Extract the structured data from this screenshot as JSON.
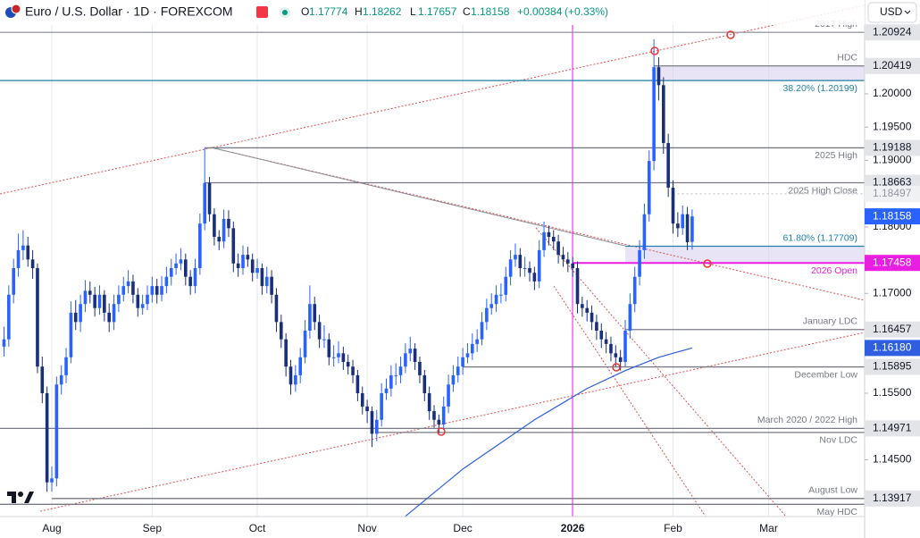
{
  "chart_data": {
    "type": "candlestick",
    "title": "Euro / U.S. Dollar · 1D · FOREXCOM",
    "currency": "USD",
    "ohlc_labels": [
      "O",
      "H",
      "L",
      "C"
    ],
    "change": "+0.00384",
    "change_pct": "(+0.33%)",
    "up_color": "#2962ff",
    "down_color": "#1a2f7a",
    "xlim": [
      -10.84,
      170.09
    ],
    "ylim": [
      1.13646,
      1.2141
    ],
    "xticks": [
      {
        "value": 0,
        "label": "Aug"
      },
      {
        "value": 21,
        "label": "Sep"
      },
      {
        "value": 43,
        "label": "Oct"
      },
      {
        "value": 66,
        "label": "Nov"
      },
      {
        "value": 86,
        "label": "Dec"
      },
      {
        "value": 109,
        "label": "2026"
      },
      {
        "value": 130,
        "label": "Feb"
      },
      {
        "value": 150,
        "label": "Mar"
      }
    ],
    "yticks": [
      {
        "value": 1.2,
        "label": "1.20000"
      },
      {
        "value": 1.195,
        "label": "1.19500"
      },
      {
        "value": 1.19,
        "label": "1.19000"
      },
      {
        "value": 1.18,
        "label": "1.18000"
      },
      {
        "value": 1.17,
        "label": "1.17000"
      },
      {
        "value": 1.155,
        "label": "1.15500"
      },
      {
        "value": 1.145,
        "label": "1.14500"
      }
    ],
    "x": [
      -10,
      -9,
      -8,
      -7,
      -6,
      -5,
      -4,
      -3,
      -2,
      -1,
      0,
      1,
      2,
      3,
      4,
      5,
      6,
      7,
      8,
      9,
      10,
      11,
      12,
      13,
      14,
      15,
      16,
      17,
      18,
      19,
      20,
      21,
      22,
      23,
      24,
      25,
      26,
      27,
      28,
      29,
      30,
      31,
      32,
      33,
      34,
      35,
      36,
      37,
      38,
      39,
      40,
      41,
      42,
      43,
      44,
      45,
      46,
      47,
      48,
      49,
      50,
      51,
      52,
      53,
      54,
      55,
      56,
      57,
      58,
      59,
      60,
      61,
      62,
      63,
      64,
      65,
      66,
      67,
      68,
      69,
      70,
      71,
      72,
      73,
      74,
      75,
      76,
      77,
      78,
      79,
      80,
      81,
      82,
      83,
      84,
      85,
      86,
      87,
      88,
      89,
      90,
      91,
      92,
      93,
      94,
      95,
      96,
      97,
      98,
      99,
      100,
      101,
      102,
      103,
      104,
      105,
      106,
      107,
      108,
      109,
      110,
      111,
      112,
      113,
      114,
      115,
      116,
      117,
      118,
      119,
      120,
      121,
      122,
      123,
      124,
      125,
      126,
      127,
      128,
      129,
      130,
      131,
      132,
      133,
      134
    ],
    "candles": [
      [
        1.162,
        1.165,
        1.1605,
        1.1631
      ],
      [
        1.1631,
        1.1712,
        1.162,
        1.1698
      ],
      [
        1.1698,
        1.1752,
        1.1685,
        1.1738
      ],
      [
        1.1738,
        1.179,
        1.1725,
        1.1765
      ],
      [
        1.1765,
        1.1795,
        1.175,
        1.1772
      ],
      [
        1.1772,
        1.1785,
        1.174,
        1.1751
      ],
      [
        1.1751,
        1.1765,
        1.1722,
        1.1738
      ],
      [
        1.1738,
        1.1745,
        1.158,
        1.159
      ],
      [
        1.159,
        1.1605,
        1.1535,
        1.155
      ],
      [
        1.155,
        1.156,
        1.1402,
        1.1416
      ],
      [
        1.1416,
        1.144,
        1.1402,
        1.1422
      ],
      [
        1.1422,
        1.1575,
        1.141,
        1.1563
      ],
      [
        1.1563,
        1.1592,
        1.1548,
        1.1577
      ],
      [
        1.1577,
        1.1618,
        1.1565,
        1.1604
      ],
      [
        1.1604,
        1.1688,
        1.1595,
        1.1671
      ],
      [
        1.1671,
        1.169,
        1.1645,
        1.1657
      ],
      [
        1.1657,
        1.1698,
        1.1642,
        1.1684
      ],
      [
        1.1684,
        1.172,
        1.1672,
        1.1704
      ],
      [
        1.1704,
        1.1718,
        1.1685,
        1.1698
      ],
      [
        1.1698,
        1.171,
        1.1665,
        1.1678
      ],
      [
        1.1678,
        1.1712,
        1.1668,
        1.1698
      ],
      [
        1.1698,
        1.1705,
        1.1658,
        1.1671
      ],
      [
        1.1671,
        1.1685,
        1.1642,
        1.1657
      ],
      [
        1.1657,
        1.1698,
        1.1645,
        1.1684
      ],
      [
        1.1684,
        1.1712,
        1.1672,
        1.1698
      ],
      [
        1.1698,
        1.1725,
        1.1688,
        1.1711
      ],
      [
        1.1711,
        1.1735,
        1.17,
        1.1718
      ],
      [
        1.1718,
        1.1728,
        1.1685,
        1.1698
      ],
      [
        1.1698,
        1.1708,
        1.1665,
        1.1678
      ],
      [
        1.1678,
        1.1698,
        1.1668,
        1.1684
      ],
      [
        1.1684,
        1.1712,
        1.1675,
        1.1698
      ],
      [
        1.1698,
        1.1725,
        1.1686,
        1.1711
      ],
      [
        1.1711,
        1.1722,
        1.1685,
        1.1698
      ],
      [
        1.1698,
        1.1726,
        1.1688,
        1.1711
      ],
      [
        1.1711,
        1.174,
        1.17,
        1.1725
      ],
      [
        1.1725,
        1.1752,
        1.1712,
        1.1738
      ],
      [
        1.1738,
        1.176,
        1.1728,
        1.1745
      ],
      [
        1.1745,
        1.1768,
        1.1735,
        1.1751
      ],
      [
        1.1751,
        1.176,
        1.1712,
        1.1725
      ],
      [
        1.1725,
        1.1735,
        1.1698,
        1.1711
      ],
      [
        1.1711,
        1.1752,
        1.17,
        1.1738
      ],
      [
        1.1738,
        1.182,
        1.1728,
        1.1805
      ],
      [
        1.1805,
        1.1919,
        1.1795,
        1.1866
      ],
      [
        1.1866,
        1.1875,
        1.1808,
        1.1819
      ],
      [
        1.1819,
        1.1828,
        1.1772,
        1.1785
      ],
      [
        1.1785,
        1.1795,
        1.1765,
        1.1778
      ],
      [
        1.1778,
        1.1826,
        1.1768,
        1.1812
      ],
      [
        1.1812,
        1.1825,
        1.1785,
        1.1798
      ],
      [
        1.1798,
        1.1808,
        1.1732,
        1.1745
      ],
      [
        1.1745,
        1.176,
        1.1725,
        1.1738
      ],
      [
        1.1738,
        1.1772,
        1.1728,
        1.1758
      ],
      [
        1.1758,
        1.177,
        1.174,
        1.1751
      ],
      [
        1.1751,
        1.176,
        1.1718,
        1.1731
      ],
      [
        1.1731,
        1.1752,
        1.1722,
        1.1738
      ],
      [
        1.1738,
        1.1745,
        1.1698,
        1.1711
      ],
      [
        1.1711,
        1.174,
        1.17,
        1.1725
      ],
      [
        1.1725,
        1.1735,
        1.1685,
        1.1698
      ],
      [
        1.1698,
        1.1708,
        1.1642,
        1.1657
      ],
      [
        1.1657,
        1.1668,
        1.1618,
        1.1631
      ],
      [
        1.1631,
        1.164,
        1.1575,
        1.159
      ],
      [
        1.159,
        1.16,
        1.1548,
        1.1563
      ],
      [
        1.1563,
        1.1592,
        1.1552,
        1.1577
      ],
      [
        1.1577,
        1.1618,
        1.1565,
        1.1604
      ],
      [
        1.1604,
        1.166,
        1.1595,
        1.1644
      ],
      [
        1.1644,
        1.1712,
        1.1632,
        1.1684
      ],
      [
        1.1684,
        1.1695,
        1.1645,
        1.1657
      ],
      [
        1.1657,
        1.1668,
        1.1618,
        1.1631
      ],
      [
        1.1631,
        1.1652,
        1.1618,
        1.1631
      ],
      [
        1.1631,
        1.164,
        1.1592,
        1.1604
      ],
      [
        1.1604,
        1.1622,
        1.159,
        1.1604
      ],
      [
        1.1604,
        1.1628,
        1.1595,
        1.161
      ],
      [
        1.161,
        1.162,
        1.1585,
        1.1597
      ],
      [
        1.1597,
        1.1608,
        1.1578,
        1.159
      ],
      [
        1.159,
        1.16,
        1.1565,
        1.1577
      ],
      [
        1.1577,
        1.1585,
        1.1538,
        1.155
      ],
      [
        1.155,
        1.156,
        1.1518,
        1.153
      ],
      [
        1.153,
        1.154,
        1.1505,
        1.1523
      ],
      [
        1.1523,
        1.153,
        1.1469,
        1.1489
      ],
      [
        1.1489,
        1.1525,
        1.1478,
        1.151
      ],
      [
        1.151,
        1.1565,
        1.15,
        1.155
      ],
      [
        1.155,
        1.1572,
        1.154,
        1.1557
      ],
      [
        1.1557,
        1.1592,
        1.1545,
        1.1577
      ],
      [
        1.1577,
        1.1595,
        1.1562,
        1.1577
      ],
      [
        1.1577,
        1.1605,
        1.1565,
        1.159
      ],
      [
        1.159,
        1.1625,
        1.158,
        1.161
      ],
      [
        1.161,
        1.1635,
        1.1598,
        1.1617
      ],
      [
        1.1617,
        1.1625,
        1.1585,
        1.1597
      ],
      [
        1.1597,
        1.1605,
        1.1565,
        1.1577
      ],
      [
        1.1577,
        1.1585,
        1.1538,
        1.155
      ],
      [
        1.155,
        1.156,
        1.151,
        1.1523
      ],
      [
        1.1523,
        1.1532,
        1.1498,
        1.151
      ],
      [
        1.151,
        1.1518,
        1.149,
        1.1503
      ],
      [
        1.1503,
        1.1545,
        1.1495,
        1.153
      ],
      [
        1.153,
        1.1578,
        1.152,
        1.1563
      ],
      [
        1.1563,
        1.1592,
        1.1552,
        1.1577
      ],
      [
        1.1577,
        1.1605,
        1.1566,
        1.159
      ],
      [
        1.159,
        1.1618,
        1.1578,
        1.1604
      ],
      [
        1.1604,
        1.1625,
        1.1595,
        1.161
      ],
      [
        1.161,
        1.164,
        1.16,
        1.1624
      ],
      [
        1.1624,
        1.1646,
        1.1612,
        1.1631
      ],
      [
        1.1631,
        1.1672,
        1.1622,
        1.1657
      ],
      [
        1.1657,
        1.1692,
        1.1645,
        1.1678
      ],
      [
        1.1678,
        1.17,
        1.1668,
        1.1684
      ],
      [
        1.1684,
        1.1712,
        1.1672,
        1.1698
      ],
      [
        1.1698,
        1.1715,
        1.1685,
        1.1698
      ],
      [
        1.1698,
        1.174,
        1.1688,
        1.1725
      ],
      [
        1.1725,
        1.1765,
        1.1712,
        1.1751
      ],
      [
        1.1751,
        1.1775,
        1.174,
        1.1758
      ],
      [
        1.1758,
        1.1768,
        1.1725,
        1.1738
      ],
      [
        1.1738,
        1.1755,
        1.1725,
        1.1738
      ],
      [
        1.1738,
        1.1748,
        1.1718,
        1.1731
      ],
      [
        1.1731,
        1.174,
        1.1705,
        1.1718
      ],
      [
        1.1718,
        1.178,
        1.1708,
        1.1765
      ],
      [
        1.1765,
        1.1808,
        1.1755,
        1.1792
      ],
      [
        1.1792,
        1.1802,
        1.1772,
        1.1785
      ],
      [
        1.1785,
        1.1795,
        1.1765,
        1.1778
      ],
      [
        1.1778,
        1.1788,
        1.1745,
        1.1758
      ],
      [
        1.1758,
        1.177,
        1.174,
        1.1751
      ],
      [
        1.1751,
        1.1762,
        1.1732,
        1.1745
      ],
      [
        1.1745,
        1.1755,
        1.1725,
        1.1738
      ],
      [
        1.1738,
        1.1748,
        1.167,
        1.1684
      ],
      [
        1.1684,
        1.1695,
        1.1665,
        1.1678
      ],
      [
        1.1678,
        1.169,
        1.1658,
        1.1671
      ],
      [
        1.1671,
        1.1682,
        1.1645,
        1.1657
      ],
      [
        1.1657,
        1.1668,
        1.163,
        1.1644
      ],
      [
        1.1644,
        1.1655,
        1.1618,
        1.1631
      ],
      [
        1.1631,
        1.1642,
        1.161,
        1.1624
      ],
      [
        1.1624,
        1.1635,
        1.1598,
        1.161
      ],
      [
        1.161,
        1.1622,
        1.159,
        1.1604
      ],
      [
        1.1604,
        1.1615,
        1.1584,
        1.1597
      ],
      [
        1.1597,
        1.166,
        1.159,
        1.1644
      ],
      [
        1.1644,
        1.17,
        1.1632,
        1.1684
      ],
      [
        1.1684,
        1.174,
        1.1672,
        1.1725
      ],
      [
        1.1725,
        1.178,
        1.1712,
        1.1765
      ],
      [
        1.1765,
        1.1835,
        1.1752,
        1.1819
      ],
      [
        1.1819,
        1.1915,
        1.1808,
        1.1899
      ],
      [
        1.1899,
        1.2082,
        1.1885,
        1.204
      ],
      [
        1.204,
        1.2055,
        1.199,
        1.2013
      ],
      [
        1.2013,
        1.2025,
        1.191,
        1.1926
      ],
      [
        1.1926,
        1.194,
        1.1845,
        1.1859
      ],
      [
        1.1859,
        1.187,
        1.179,
        1.1805
      ],
      [
        1.1805,
        1.1822,
        1.1785,
        1.1798
      ],
      [
        1.1798,
        1.1832,
        1.1788,
        1.1819
      ],
      [
        1.1819,
        1.183,
        1.1765,
        1.1777
      ],
      [
        1.17774,
        1.18262,
        1.17657,
        1.18158
      ]
    ],
    "moving_average": {
      "color": "#2f5fe0",
      "x": [
        74,
        86,
        101,
        112,
        120,
        127,
        134
      ],
      "values": [
        1.1365,
        1.1436,
        1.151,
        1.1557,
        1.1584,
        1.1604,
        1.1618
      ],
      "value_label": "1.16180"
    },
    "zones": [
      {
        "from": 1.20419,
        "to": 1.20199,
        "start": 126
      },
      {
        "from": 1.17709,
        "to": 1.17458,
        "start": 120
      }
    ],
    "levels": [
      {
        "name": "2017 High",
        "value": 1.20924,
        "color": "#9a9da6",
        "label_pos": "above",
        "axis_label": true,
        "box": "#e3e4e8"
      },
      {
        "name": "HDC",
        "value": 1.20419,
        "color": "#787b86",
        "start": 126,
        "label_pos": "above",
        "axis_label": true,
        "box": "#e3e4e8"
      },
      {
        "name": "38.20% (1.20199)",
        "value": 1.20199,
        "color": "#1f7fa6",
        "label_pos": "below",
        "axis_label": false
      },
      {
        "name": "2025 High",
        "value": 1.19188,
        "color": "#787b86",
        "start": 32,
        "label_pos": "below",
        "axis_label": true,
        "box": "#e3e4e8"
      },
      {
        "name": "2025 High Close",
        "value": 1.18663,
        "color": "#787b86",
        "start": 32,
        "label_pos": "below",
        "axis_label": true,
        "box": "#e3e4e8"
      },
      {
        "name": null,
        "value": 1.18497,
        "color": "#c5c7cd",
        "start": 130,
        "dotted": true,
        "axis_label": true,
        "box": "#f0f1f3"
      },
      {
        "name": "61.80% (1.17709)",
        "value": 1.17709,
        "color": "#1f7fa6",
        "start": 120,
        "label_pos": "above",
        "axis_label": false
      },
      {
        "name": "2026 Open",
        "value": 1.17458,
        "color": "#e91ee0",
        "start": 109,
        "label_pos": "below",
        "axis_label": true,
        "box": "#e91ee0"
      },
      {
        "name": "January LDC",
        "value": 1.16457,
        "color": "#787b86",
        "start": 120,
        "label_pos": "above",
        "axis_label": true,
        "box": "#e3e4e8"
      },
      {
        "name": "December Low",
        "value": 1.15895,
        "color": "#787b86",
        "start": 86,
        "label_pos": "below",
        "axis_label": true,
        "box": "#e3e4e8"
      },
      {
        "name": "March 2020 / 2022 High",
        "value": 1.14971,
        "color": "#787b86",
        "label_pos": "above",
        "axis_label": true,
        "box": "#e3e4e8"
      },
      {
        "name": "Nov LDC",
        "value": 1.1491,
        "color": "#787b86",
        "start": 68,
        "label_pos": "below",
        "axis_label": false
      },
      {
        "name": "August Low",
        "value": 1.13917,
        "color": "#787b86",
        "start": 0,
        "label_pos": "above",
        "axis_label": true,
        "box": "#e3e4e8"
      },
      {
        "name": "May HDC",
        "value": 1.1383,
        "color": "#787b86",
        "label_pos": "below",
        "axis_label": false
      }
    ]
  }
}
